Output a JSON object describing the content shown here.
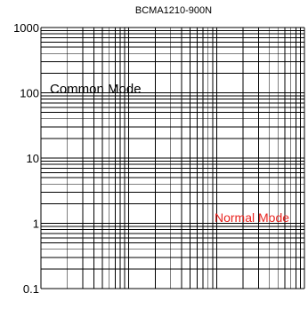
{
  "chart_data": {
    "type": "line",
    "title": "BCMA1210-900N",
    "xlabel": "",
    "ylabel": "",
    "y_scale": "log",
    "ylim": [
      0.1,
      1000
    ],
    "y_tick_labels": [
      "1000",
      "100",
      "10",
      "1",
      "0.1"
    ],
    "x_scale": "log",
    "x_decades": 3,
    "grid": true,
    "series": [
      {
        "name": "Common Mode",
        "color": "#000000",
        "values": []
      },
      {
        "name": "Normal Mode",
        "color": "#e8231f",
        "values": []
      }
    ]
  }
}
